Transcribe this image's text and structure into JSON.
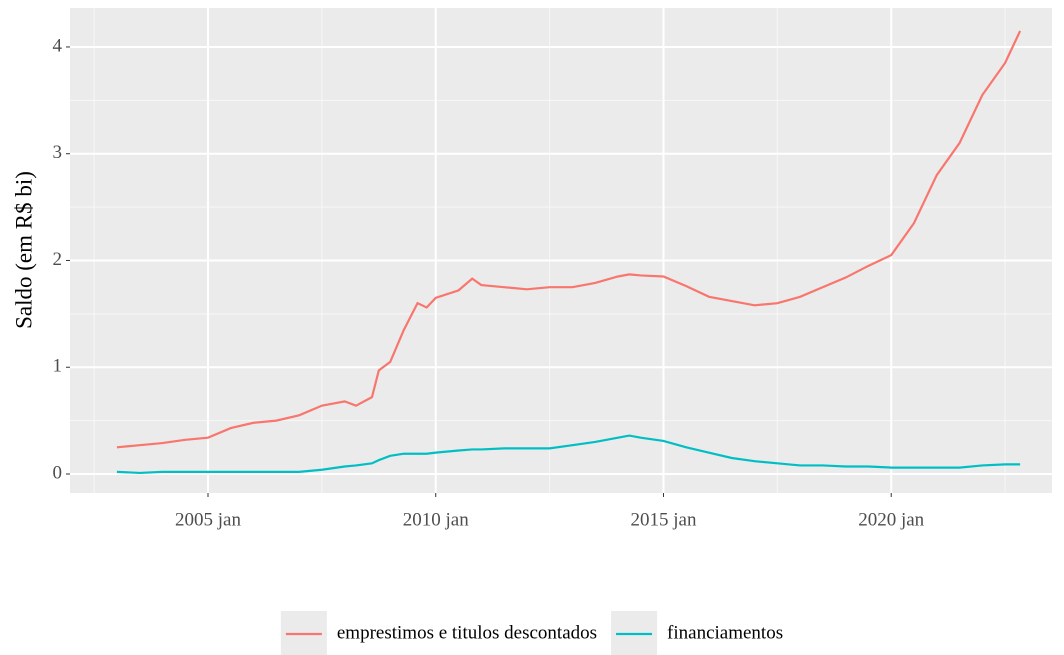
{
  "chart_data": {
    "type": "line",
    "y_label": "Saldo (em R$ bi)",
    "x": [
      2003,
      2003.5,
      2004,
      2004.5,
      2005,
      2005.5,
      2006,
      2006.5,
      2007,
      2007.5,
      2008,
      2008.25,
      2008.6,
      2008.75,
      2009,
      2009.3,
      2009.6,
      2009.8,
      2010,
      2010.5,
      2010.8,
      2011,
      2011.5,
      2012,
      2012.5,
      2013,
      2013.5,
      2014,
      2014.25,
      2014.5,
      2015,
      2015.5,
      2016,
      2016.5,
      2017,
      2017.5,
      2018,
      2018.5,
      2019,
      2019.5,
      2020,
      2020.5,
      2021,
      2021.5,
      2022,
      2022.5,
      2022.83
    ],
    "series": [
      {
        "name": "emprestimos e titulos descontados",
        "color": "#F8766D",
        "values": [
          0.25,
          0.27,
          0.29,
          0.32,
          0.34,
          0.43,
          0.48,
          0.5,
          0.55,
          0.64,
          0.68,
          0.64,
          0.72,
          0.97,
          1.05,
          1.35,
          1.6,
          1.56,
          1.65,
          1.72,
          1.83,
          1.77,
          1.75,
          1.73,
          1.75,
          1.75,
          1.79,
          1.85,
          1.87,
          1.86,
          1.85,
          1.76,
          1.66,
          1.62,
          1.58,
          1.6,
          1.66,
          1.75,
          1.84,
          1.95,
          2.05,
          2.35,
          2.8,
          3.1,
          3.55,
          3.85,
          4.15
        ]
      },
      {
        "name": "financiamentos",
        "color": "#00BFC4",
        "values": [
          0.02,
          0.01,
          0.02,
          0.02,
          0.02,
          0.02,
          0.02,
          0.02,
          0.02,
          0.04,
          0.07,
          0.08,
          0.1,
          0.13,
          0.17,
          0.19,
          0.19,
          0.19,
          0.2,
          0.22,
          0.23,
          0.23,
          0.24,
          0.24,
          0.24,
          0.27,
          0.3,
          0.34,
          0.36,
          0.34,
          0.31,
          0.25,
          0.2,
          0.15,
          0.12,
          0.1,
          0.08,
          0.08,
          0.07,
          0.07,
          0.06,
          0.06,
          0.06,
          0.06,
          0.08,
          0.09,
          0.09
        ]
      }
    ],
    "xlim": [
      2001.97,
      2023.53
    ],
    "xticks": [
      {
        "value": 2005,
        "label": "2005 jan"
      },
      {
        "value": 2010,
        "label": "2010 jan"
      },
      {
        "value": 2015,
        "label": "2015 jan"
      },
      {
        "value": 2020,
        "label": "2020 jan"
      }
    ],
    "ylim": [
      -0.178,
      4.365
    ],
    "yticks": [
      0,
      1,
      2,
      3,
      4
    ],
    "grid": true,
    "legend": "bottom"
  }
}
